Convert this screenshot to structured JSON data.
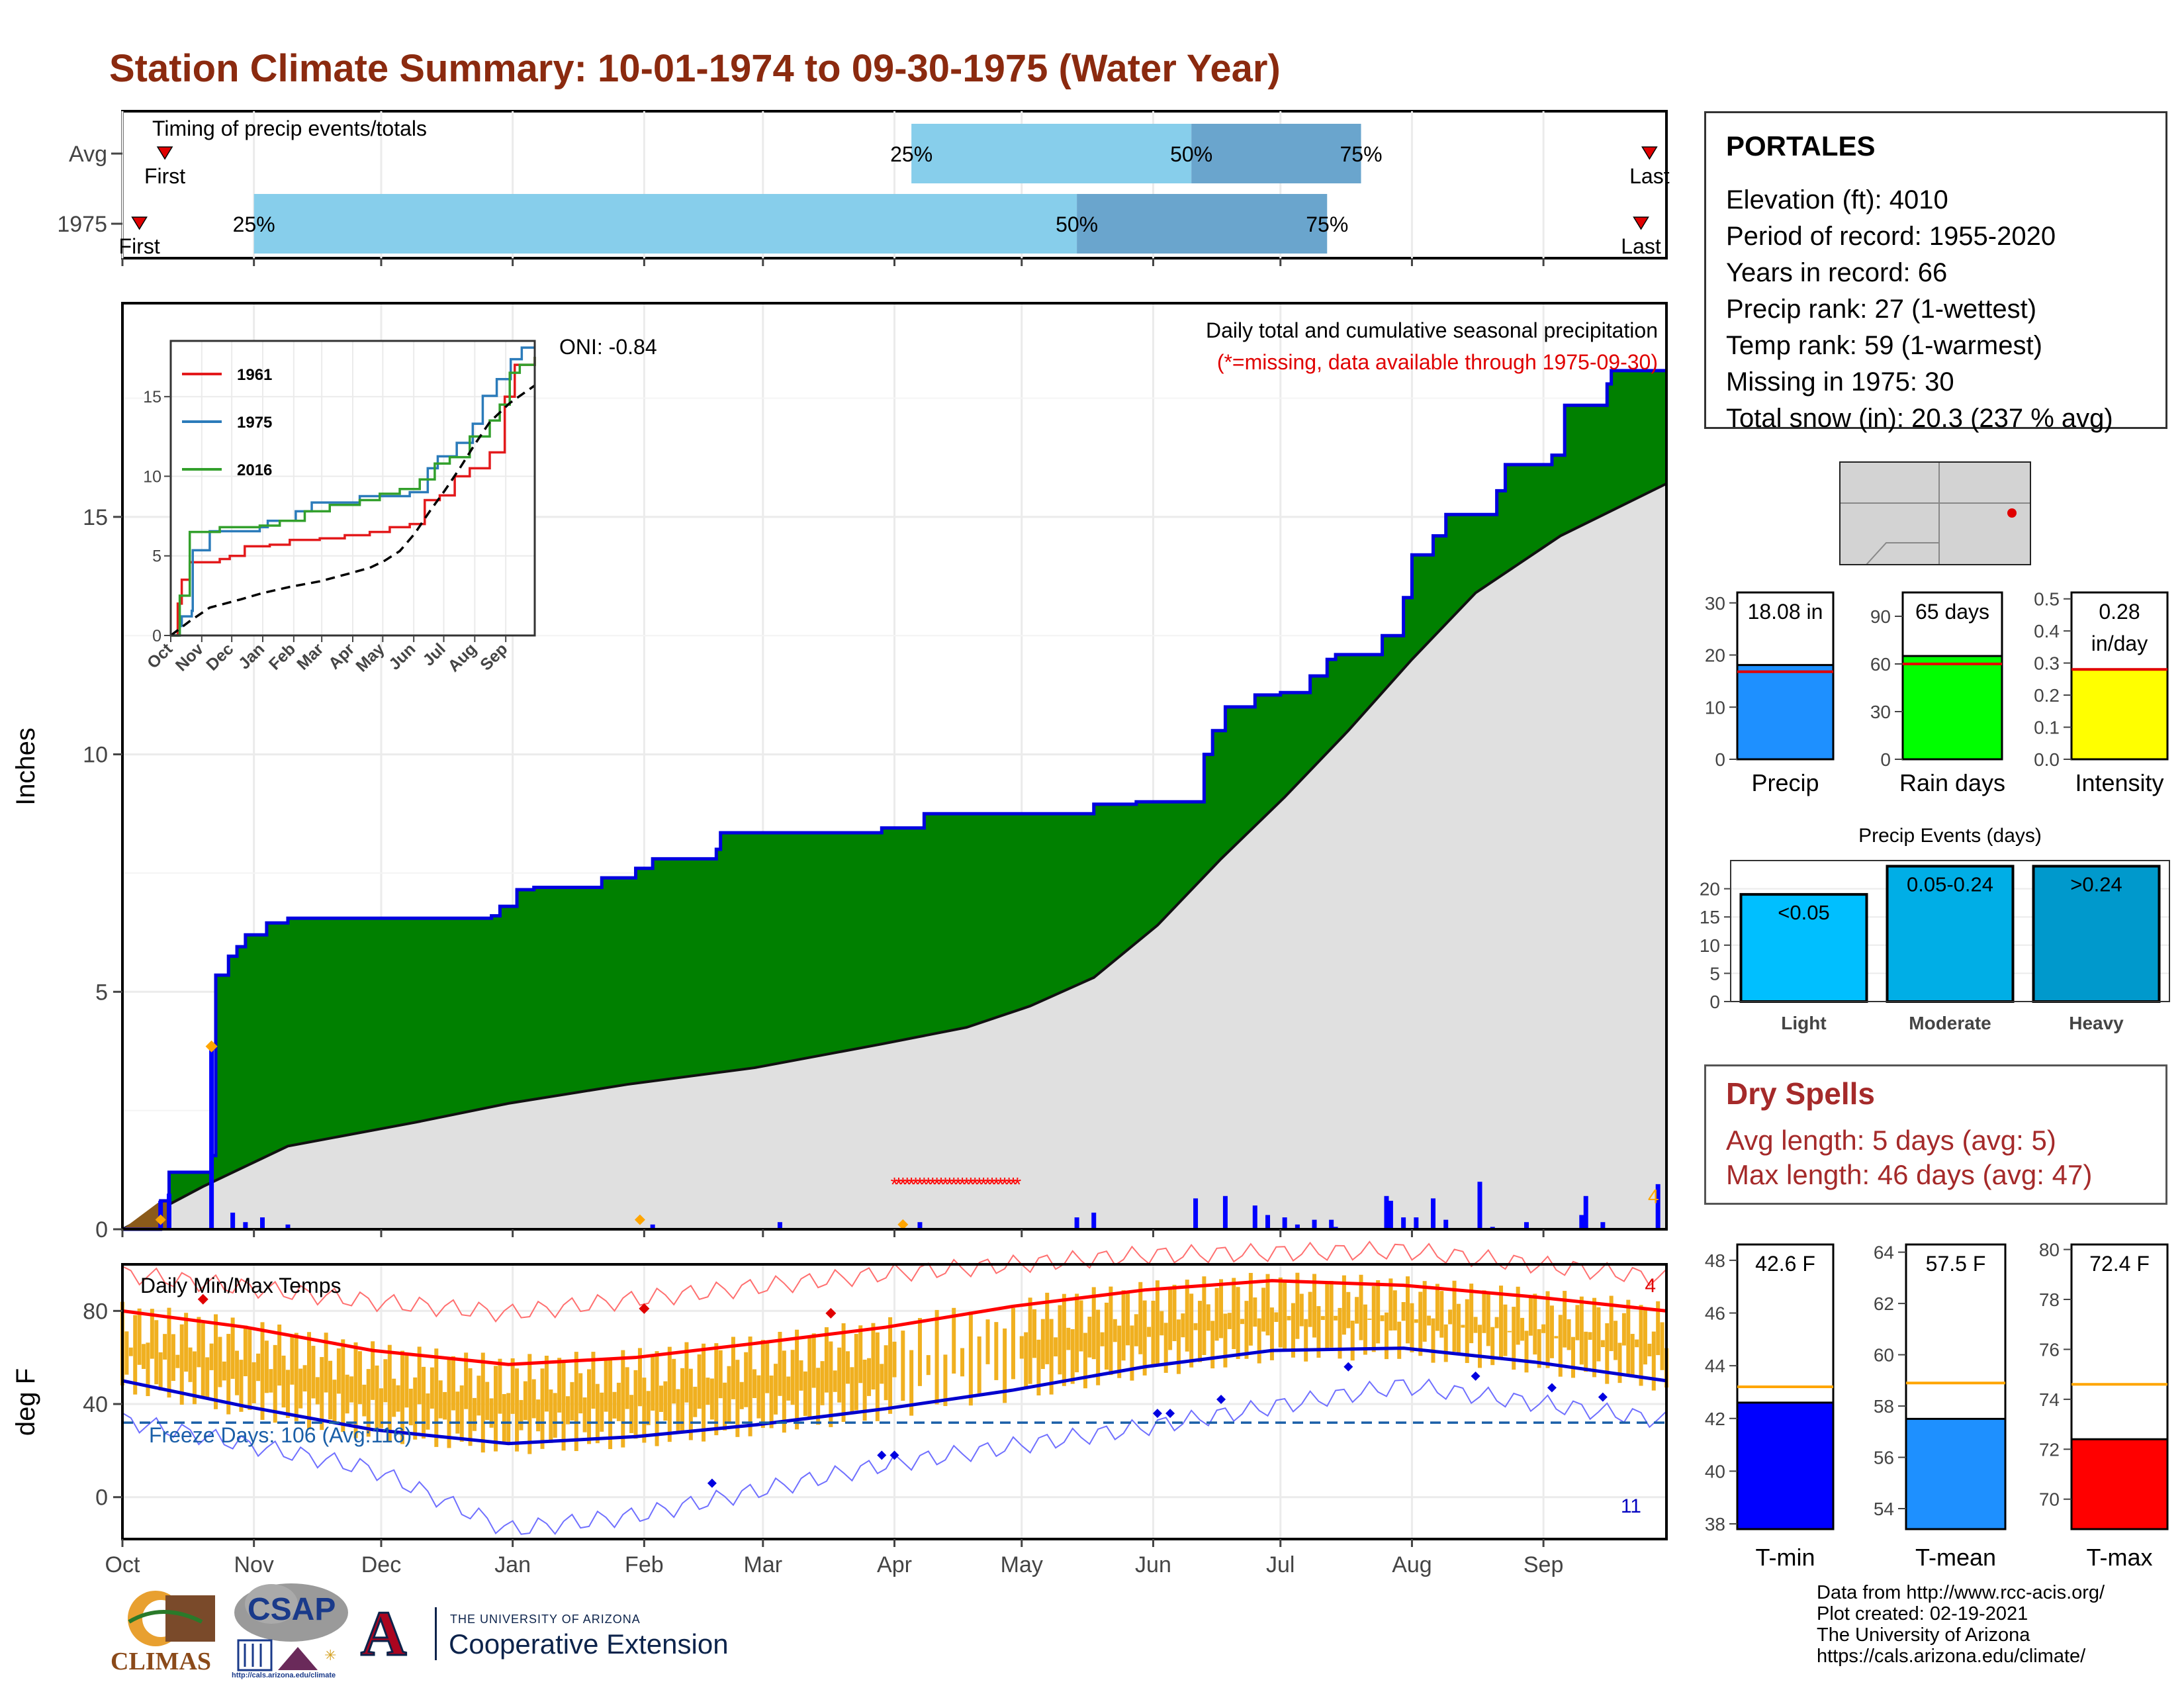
{
  "title": "Station Climate Summary: 10-01-1974 to 09-30-1975 (Water Year)",
  "colors": {
    "title": "#8b2a0f",
    "precip_bar": "#0000ff",
    "cumulative_fill": "#008000",
    "avg_fill": "#e0e0e0",
    "tmax": "#ff0000",
    "tmin": "#0000cd",
    "temp_bars": "#f0b020",
    "freeze_line": "#1a5fa8",
    "light": "#00bfff",
    "moderate": "#00aee6",
    "heavy": "#0099cc"
  },
  "timing": {
    "label": "Timing of precip events/totals",
    "rows": [
      "Avg",
      "1975"
    ],
    "first_label": "First",
    "last_label": "Last",
    "pct_labels": [
      "25%",
      "50%",
      "75%"
    ],
    "date_axis_start": "1974-10-01",
    "date_axis_end": "1975-09-30",
    "avg": {
      "first": "1974-10-11",
      "p25": "1975-04-05",
      "p50": "1975-06-10",
      "p75": "1975-07-20",
      "last": "1975-09-26"
    },
    "y1975": {
      "first": "1974-10-05",
      "p25": "1974-11-01",
      "p50": "1975-05-14",
      "p75": "1975-07-12",
      "last": "1975-09-24"
    }
  },
  "chart_data": [
    {
      "type": "area",
      "title": "Daily total and cumulative seasonal precipitation",
      "subtitle": "(*=missing, data available through 1975-09-30)",
      "oni_label": "ONI: -0.84",
      "ylabel": "Inches",
      "ylim": [
        0,
        19.5
      ],
      "yticks": [
        0,
        5,
        10,
        15
      ],
      "month_labels": [
        "Oct",
        "Nov",
        "Dec",
        "Jan",
        "Feb",
        "Mar",
        "Apr",
        "May",
        "Jun",
        "Jul",
        "Aug",
        "Sep"
      ],
      "count_label": "4",
      "cumulative_1975": [
        [
          1,
          0
        ],
        [
          10,
          0.6
        ],
        [
          12,
          1.2
        ],
        [
          22,
          1.55
        ],
        [
          23,
          5.35
        ],
        [
          26,
          5.75
        ],
        [
          28,
          5.95
        ],
        [
          30,
          6.2
        ],
        [
          35,
          6.45
        ],
        [
          40,
          6.55
        ],
        [
          88,
          6.6
        ],
        [
          90,
          6.8
        ],
        [
          94,
          7.15
        ],
        [
          98,
          7.2
        ],
        [
          114,
          7.4
        ],
        [
          122,
          7.6
        ],
        [
          126,
          7.8
        ],
        [
          141,
          8.0
        ],
        [
          142,
          8.35
        ],
        [
          180,
          8.45
        ],
        [
          190,
          8.75
        ],
        [
          230,
          8.95
        ],
        [
          240,
          9.0
        ],
        [
          256,
          10.0
        ],
        [
          258,
          10.5
        ],
        [
          261,
          11.0
        ],
        [
          268,
          11.25
        ],
        [
          274,
          11.3
        ],
        [
          281,
          11.65
        ],
        [
          285,
          12.0
        ],
        [
          287,
          12.1
        ],
        [
          298,
          12.5
        ],
        [
          303,
          13.3
        ],
        [
          305,
          14.2
        ],
        [
          310,
          14.6
        ],
        [
          313,
          15.05
        ],
        [
          325,
          15.55
        ],
        [
          327,
          16.1
        ],
        [
          338,
          16.3
        ],
        [
          341,
          17.35
        ],
        [
          351,
          17.8
        ],
        [
          352,
          18.08
        ],
        [
          365,
          18.08
        ]
      ],
      "avg_cumulative": [
        [
          1,
          0
        ],
        [
          20,
          0.9
        ],
        [
          40,
          1.75
        ],
        [
          70,
          2.25
        ],
        [
          92,
          2.65
        ],
        [
          120,
          3.05
        ],
        [
          150,
          3.4
        ],
        [
          180,
          3.9
        ],
        [
          200,
          4.25
        ],
        [
          215,
          4.7
        ],
        [
          230,
          5.3
        ],
        [
          245,
          6.4
        ],
        [
          260,
          7.8
        ],
        [
          275,
          9.1
        ],
        [
          290,
          10.5
        ],
        [
          305,
          12.0
        ],
        [
          320,
          13.4
        ],
        [
          340,
          14.6
        ],
        [
          365,
          15.7
        ]
      ],
      "daily_precip": [
        [
          10,
          0.6
        ],
        [
          12,
          0.75
        ],
        [
          22,
          3.85
        ],
        [
          27,
          0.35
        ],
        [
          30,
          0.15
        ],
        [
          34,
          0.25
        ],
        [
          40,
          0.1
        ],
        [
          126,
          0.1
        ],
        [
          156,
          0.15
        ],
        [
          189,
          0.15
        ],
        [
          226,
          0.25
        ],
        [
          230,
          0.35
        ],
        [
          254,
          0.65
        ],
        [
          261,
          0.7
        ],
        [
          268,
          0.5
        ],
        [
          271,
          0.3
        ],
        [
          275,
          0.25
        ],
        [
          278,
          0.1
        ],
        [
          282,
          0.2
        ],
        [
          286,
          0.2
        ],
        [
          287,
          0.05
        ],
        [
          299,
          0.7
        ],
        [
          300,
          0.6
        ],
        [
          303,
          0.25
        ],
        [
          306,
          0.25
        ],
        [
          310,
          0.65
        ],
        [
          313,
          0.2
        ],
        [
          321,
          1.0
        ],
        [
          324,
          0.05
        ],
        [
          332,
          0.15
        ],
        [
          345,
          0.3
        ],
        [
          346,
          0.7
        ],
        [
          350,
          0.15
        ],
        [
          363,
          0.95
        ]
      ],
      "missing_range": [
        "1975-04-01",
        "1975-04-30"
      ]
    },
    {
      "type": "line",
      "title": "Daily total and cumulative seasonal precipitation (inset)",
      "xlabels": [
        "Oct",
        "Nov",
        "Dec",
        "Jan",
        "Feb",
        "Mar",
        "Apr",
        "May",
        "Jun",
        "Jul",
        "Aug",
        "Sep"
      ],
      "yticks": [
        0,
        5,
        10,
        15
      ],
      "ylim": [
        0,
        18.5
      ],
      "series": [
        {
          "name": "1961",
          "points": [
            [
              1,
              0
            ],
            [
              8,
              2.0
            ],
            [
              12,
              3.5
            ],
            [
              20,
              4.6
            ],
            [
              45,
              4.6
            ],
            [
              50,
              4.8
            ],
            [
              60,
              5.0
            ],
            [
              75,
              5.6
            ],
            [
              100,
              5.7
            ],
            [
              120,
              6.0
            ],
            [
              150,
              6.1
            ],
            [
              175,
              6.3
            ],
            [
              200,
              6.5
            ],
            [
              220,
              6.8
            ],
            [
              240,
              7.0
            ],
            [
              255,
              8.5
            ],
            [
              270,
              8.8
            ],
            [
              285,
              10.0
            ],
            [
              300,
              10.5
            ],
            [
              320,
              11.5
            ],
            [
              335,
              15.0
            ],
            [
              345,
              17.0
            ],
            [
              365,
              17.5
            ]
          ]
        },
        {
          "name": "1975",
          "points": [
            [
              1,
              0
            ],
            [
              10,
              0.6
            ],
            [
              12,
              1.2
            ],
            [
              22,
              1.55
            ],
            [
              23,
              5.35
            ],
            [
              40,
              6.55
            ],
            [
              90,
              6.8
            ],
            [
              98,
              7.2
            ],
            [
              126,
              7.8
            ],
            [
              142,
              8.35
            ],
            [
              190,
              8.75
            ],
            [
              240,
              9.0
            ],
            [
              258,
              10.5
            ],
            [
              268,
              11.25
            ],
            [
              287,
              12.1
            ],
            [
              303,
              13.3
            ],
            [
              313,
              15.05
            ],
            [
              327,
              16.1
            ],
            [
              341,
              17.35
            ],
            [
              352,
              18.08
            ],
            [
              365,
              18.08
            ]
          ]
        },
        {
          "name": "2016",
          "points": [
            [
              1,
              0
            ],
            [
              10,
              2.5
            ],
            [
              20,
              6.5
            ],
            [
              50,
              6.8
            ],
            [
              90,
              6.9
            ],
            [
              110,
              7.2
            ],
            [
              135,
              7.8
            ],
            [
              160,
              8.2
            ],
            [
              190,
              8.5
            ],
            [
              210,
              8.9
            ],
            [
              230,
              9.2
            ],
            [
              250,
              9.8
            ],
            [
              265,
              10.8
            ],
            [
              280,
              11.2
            ],
            [
              300,
              12.5
            ],
            [
              320,
              13.5
            ],
            [
              330,
              14.5
            ],
            [
              340,
              16.5
            ],
            [
              350,
              17.0
            ],
            [
              365,
              17.5
            ]
          ]
        },
        {
          "name": "avg",
          "points": [
            [
              1,
              0
            ],
            [
              20,
              0.9
            ],
            [
              40,
              1.75
            ],
            [
              70,
              2.25
            ],
            [
              92,
              2.65
            ],
            [
              120,
              3.05
            ],
            [
              150,
              3.4
            ],
            [
              180,
              3.9
            ],
            [
              200,
              4.25
            ],
            [
              215,
              4.7
            ],
            [
              230,
              5.3
            ],
            [
              245,
              6.4
            ],
            [
              260,
              7.8
            ],
            [
              275,
              9.1
            ],
            [
              290,
              10.5
            ],
            [
              305,
              12.0
            ],
            [
              320,
              13.4
            ],
            [
              340,
              14.6
            ],
            [
              365,
              15.7
            ]
          ]
        }
      ]
    },
    {
      "type": "line",
      "title": "Daily Min/Max Temps",
      "ylabel": "deg F",
      "ylim": [
        -18,
        100
      ],
      "yticks": [
        0,
        40,
        80
      ],
      "month_labels": [
        "Oct",
        "Nov",
        "Dec",
        "Jan",
        "Feb",
        "Mar",
        "Apr",
        "May",
        "Jun",
        "Jul",
        "Aug",
        "Sep"
      ],
      "freeze_label": "Freeze Days: 106 (Avg:116)",
      "freeze_threshold": 32,
      "max_record_count": "4",
      "min_record_count": "11",
      "normal_max": [
        [
          1,
          80
        ],
        [
          30,
          73
        ],
        [
          60,
          63
        ],
        [
          92,
          57
        ],
        [
          122,
          60
        ],
        [
          150,
          66
        ],
        [
          181,
          73
        ],
        [
          211,
          82
        ],
        [
          242,
          89
        ],
        [
          272,
          93
        ],
        [
          303,
          91
        ],
        [
          334,
          86
        ],
        [
          365,
          80
        ]
      ],
      "normal_min": [
        [
          1,
          50
        ],
        [
          30,
          39
        ],
        [
          60,
          29
        ],
        [
          92,
          23
        ],
        [
          122,
          26
        ],
        [
          150,
          31
        ],
        [
          181,
          38
        ],
        [
          211,
          46
        ],
        [
          242,
          56
        ],
        [
          272,
          63
        ],
        [
          303,
          64
        ],
        [
          334,
          58
        ],
        [
          365,
          50
        ]
      ],
      "record_max": [
        [
          1,
          96
        ],
        [
          60,
          84
        ],
        [
          92,
          79
        ],
        [
          122,
          85
        ],
        [
          181,
          96
        ],
        [
          242,
          104
        ],
        [
          303,
          106
        ],
        [
          365,
          94
        ]
      ],
      "record_min": [
        [
          1,
          33
        ],
        [
          60,
          12
        ],
        [
          92,
          -14
        ],
        [
          122,
          -8
        ],
        [
          181,
          14
        ],
        [
          242,
          30
        ],
        [
          303,
          48
        ],
        [
          365,
          33
        ]
      ]
    },
    {
      "type": "bar",
      "title": "Precip",
      "categories": [
        "Precip"
      ],
      "values": [
        18.08
      ],
      "label": "18.08 in",
      "average": 16.8,
      "ylim": [
        0,
        32
      ],
      "yticks": [
        0,
        10,
        20,
        30
      ]
    },
    {
      "type": "bar",
      "title": "Rain days",
      "categories": [
        "Rain days"
      ],
      "values": [
        65
      ],
      "label": "65 days",
      "average": 60,
      "ylim": [
        0,
        105
      ],
      "yticks": [
        0,
        30,
        60,
        90
      ]
    },
    {
      "type": "bar",
      "title": "Intensity",
      "categories": [
        "Intensity"
      ],
      "values": [
        0.28
      ],
      "label": "0.28",
      "label2": "in/day",
      "average": 0.28,
      "ylim": [
        0,
        0.52
      ],
      "yticks": [
        0.0,
        0.1,
        0.2,
        0.3,
        0.4,
        0.5
      ]
    },
    {
      "type": "bar",
      "title": "Precip Events (days)",
      "categories": [
        "Light",
        "Moderate",
        "Heavy"
      ],
      "values": [
        19,
        24,
        24
      ],
      "bar_labels": [
        "<0.05",
        "0.05-0.24",
        ">0.24"
      ],
      "ylim": [
        0,
        25
      ],
      "yticks": [
        0,
        5,
        10,
        15,
        20
      ]
    },
    {
      "type": "bar",
      "title": "T-min",
      "categories": [
        "T-min"
      ],
      "values": [
        42.6
      ],
      "label": "42.6 F",
      "average": 43.2,
      "ylim": [
        37.8,
        48.6
      ],
      "yticks": [
        38,
        40,
        42,
        44,
        46,
        48
      ]
    },
    {
      "type": "bar",
      "title": "T-mean",
      "categories": [
        "T-mean"
      ],
      "values": [
        57.5
      ],
      "label": "57.5 F",
      "average": 58.9,
      "ylim": [
        53.2,
        64.3
      ],
      "yticks": [
        54,
        56,
        58,
        60,
        62,
        64
      ]
    },
    {
      "type": "bar",
      "title": "T-max",
      "categories": [
        "T-max"
      ],
      "values": [
        72.4
      ],
      "label": "72.4 F",
      "average": 74.6,
      "ylim": [
        68.8,
        80.2
      ],
      "yticks": [
        70,
        72,
        74,
        76,
        78,
        80
      ]
    }
  ],
  "station": {
    "name": "PORTALES",
    "elevation": "Elevation (ft): 4010",
    "period": "Period of record: 1955-2020",
    "years": "Years in record: 66",
    "precip_rank": "Precip rank: 27 (1-wettest)",
    "temp_rank": "Temp rank: 59 (1-warmest)",
    "missing": "Missing in 1975: 30",
    "snow": "Total snow (in): 20.3 (237 % avg)"
  },
  "dry_spells": {
    "title": "Dry Spells",
    "avg": "Avg length: 5 days (avg: 5)",
    "max": "Max length: 46 days (avg: 47)"
  },
  "credits": {
    "line1": "Data from http://www.rcc-acis.org/",
    "line2": "Plot created: 02-19-2021",
    "line3": "The University of Arizona",
    "line4": "https://cals.arizona.edu/climate/"
  },
  "logos": {
    "climas": "CLIMAS",
    "csap": "CSAP",
    "csap_url": "http://cals.arizona.edu/climate",
    "ua_top": "THE UNIVERSITY OF ARIZONA",
    "ua_bottom": "Cooperative Extension",
    "ua_letter": "A"
  }
}
